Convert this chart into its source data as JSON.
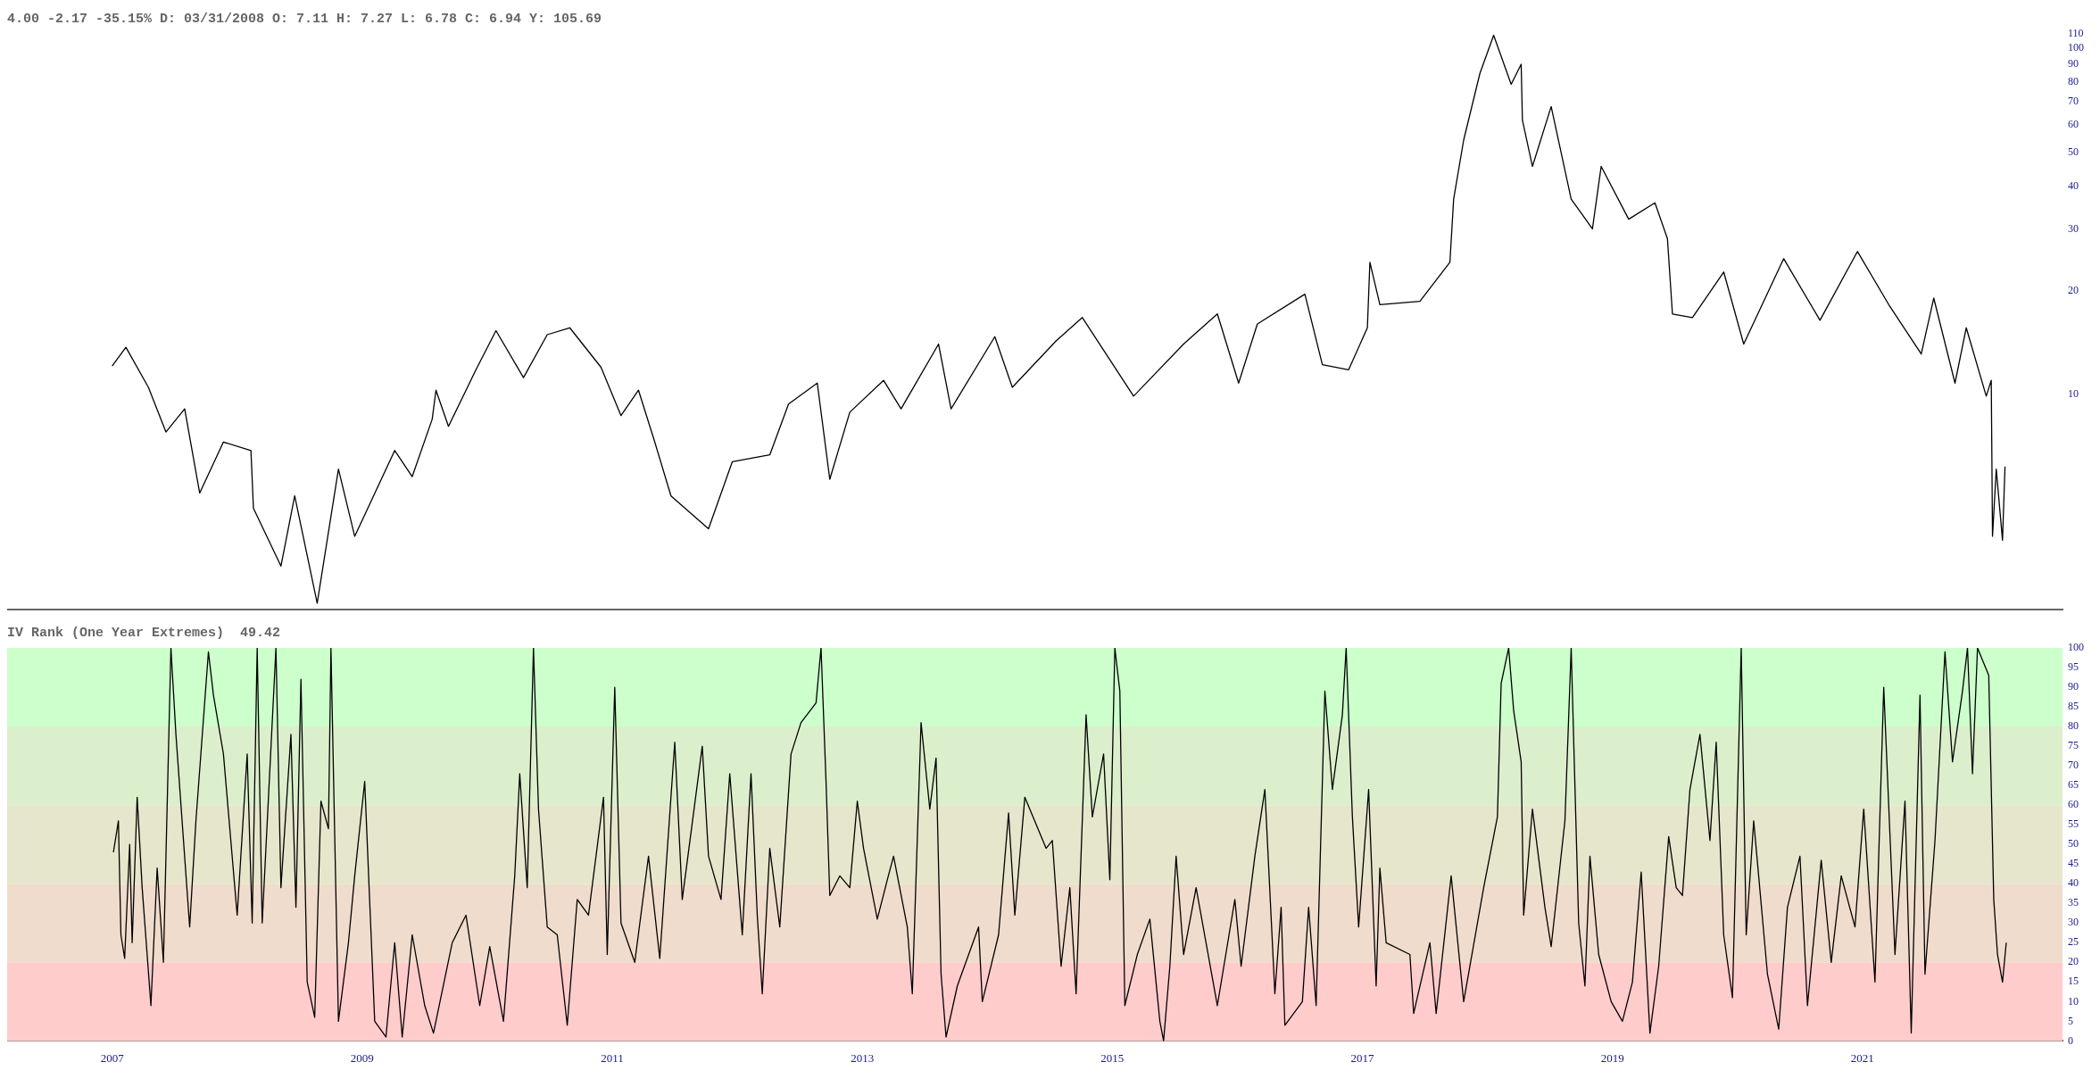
{
  "chart_data": [
    {
      "type": "line",
      "title": "4.00 -2.17 -35.15% D: 03/31/2008 O: 7.11 H: 7.27 L: 6.78 C: 6.94 Y: 105.69",
      "log": "y",
      "grid": false,
      "tick_labels": "y",
      "xlim": [
        2006.16,
        2022.6
      ],
      "ylim": [
        2.4,
        110
      ],
      "yticks": [
        10,
        20,
        30,
        40,
        50,
        60,
        70,
        80,
        90,
        100,
        110
      ],
      "series": [
        {
          "color": "#000000",
          "x": [
            2007.0,
            2007.11,
            2007.29,
            2007.43,
            2007.58,
            2007.7,
            2007.89,
            2008.11,
            2008.13,
            2008.35,
            2008.46,
            2008.64,
            2008.81,
            2008.94,
            2009.26,
            2009.4,
            2009.56,
            2009.59,
            2009.69,
            2009.91,
            2010.07,
            2010.29,
            2010.48,
            2010.66,
            2010.91,
            2011.07,
            2011.21,
            2011.34,
            2011.47,
            2011.77,
            2011.96,
            2012.26,
            2012.41,
            2012.64,
            2012.74,
            2012.9,
            2013.17,
            2013.31,
            2013.61,
            2013.71,
            2014.06,
            2014.2,
            2014.55,
            2014.76,
            2015.17,
            2015.57,
            2015.84,
            2016.01,
            2016.16,
            2016.54,
            2016.68,
            2016.89,
            2017.04,
            2017.06,
            2017.14,
            2017.46,
            2017.7,
            2017.73,
            2017.81,
            2017.94,
            2018.05,
            2018.19,
            2018.27,
            2018.28,
            2018.36,
            2018.51,
            2018.67,
            2018.84,
            2018.91,
            2019.13,
            2019.34,
            2019.44,
            2019.48,
            2019.64,
            2019.89,
            2020.05,
            2020.37,
            2020.66,
            2020.96,
            2021.21,
            2021.47,
            2021.57,
            2021.74,
            2021.83,
            2021.99,
            2022.03,
            2022.04,
            2022.07,
            2022.12,
            2022.14
          ],
          "values": [
            12.1,
            13.7,
            10.5,
            7.8,
            9.1,
            5.2,
            7.3,
            6.9,
            4.7,
            3.2,
            5.1,
            2.5,
            6.1,
            3.9,
            6.9,
            5.8,
            8.5,
            10.3,
            8.1,
            11.8,
            15.3,
            11.2,
            14.9,
            15.6,
            12.0,
            8.7,
            10.3,
            7.3,
            5.1,
            4.1,
            6.4,
            6.7,
            9.4,
            10.8,
            5.7,
            8.9,
            11.0,
            9.1,
            14.0,
            9.1,
            14.7,
            10.5,
            14.3,
            16.7,
            9.9,
            14.0,
            17.1,
            10.8,
            16.0,
            19.5,
            12.2,
            11.8,
            15.6,
            24.1,
            18.2,
            18.6,
            24.1,
            36.7,
            54.3,
            84.6,
            109,
            78.7,
            89.9,
            62,
            45.6,
            67.9,
            36.7,
            30.1,
            45.6,
            32.1,
            35.8,
            28.2,
            17.1,
            16.7,
            22.6,
            14.0,
            24.7,
            16.4,
            25.9,
            18.2,
            13.1,
            19.0,
            10.8,
            15.6,
            9.9,
            11.0,
            3.9,
            6.1,
            3.8,
            6.2
          ]
        }
      ]
    },
    {
      "type": "line",
      "title": "IV Rank (One Year Extremes)  49.42",
      "grid": false,
      "xlim": [
        2006.16,
        2022.6
      ],
      "xticks": [
        2007,
        2009,
        2011,
        2013,
        2015,
        2017,
        2019,
        2021
      ],
      "ylim": [
        0,
        100
      ],
      "yticks": [
        0,
        5,
        10,
        15,
        20,
        25,
        30,
        35,
        40,
        45,
        50,
        55,
        60,
        65,
        70,
        75,
        80,
        85,
        90,
        95,
        100
      ],
      "bands": [
        {
          "axis": "y",
          "from": 0,
          "to": 20,
          "color": "#ffcccc"
        },
        {
          "axis": "y",
          "from": 20,
          "to": 40,
          "color": "#f0dccc"
        },
        {
          "axis": "y",
          "from": 40,
          "to": 60,
          "color": "#e6e6cc"
        },
        {
          "axis": "y",
          "from": 60,
          "to": 80,
          "color": "#dcefcc"
        },
        {
          "axis": "y",
          "from": 80,
          "to": 100,
          "color": "#ccffcc"
        }
      ],
      "series": [
        {
          "color": "#000000",
          "x": [
            2007.01,
            2007.05,
            2007.07,
            2007.1,
            2007.14,
            2007.16,
            2007.2,
            2007.24,
            2007.31,
            2007.36,
            2007.41,
            2007.47,
            2007.51,
            2007.62,
            2007.67,
            2007.77,
            2007.81,
            2007.89,
            2008.0,
            2008.08,
            2008.12,
            2008.16,
            2008.2,
            2008.31,
            2008.35,
            2008.43,
            2008.47,
            2008.51,
            2008.56,
            2008.62,
            2008.67,
            2008.73,
            2008.75,
            2008.81,
            2008.89,
            2008.94,
            2009.02,
            2009.1,
            2009.19,
            2009.26,
            2009.32,
            2009.4,
            2009.5,
            2009.57,
            2009.72,
            2009.83,
            2009.94,
            2010.02,
            2010.13,
            2010.22,
            2010.26,
            2010.32,
            2010.37,
            2010.41,
            2010.48,
            2010.56,
            2010.64,
            2010.72,
            2010.81,
            2010.93,
            2010.96,
            2011.02,
            2011.07,
            2011.18,
            2011.29,
            2011.38,
            2011.5,
            2011.56,
            2011.72,
            2011.77,
            2011.87,
            2011.94,
            2012.04,
            2012.11,
            2012.16,
            2012.2,
            2012.26,
            2012.34,
            2012.43,
            2012.51,
            2012.63,
            2012.67,
            2012.71,
            2012.74,
            2012.82,
            2012.9,
            2012.96,
            2013.01,
            2013.12,
            2013.2,
            2013.25,
            2013.36,
            2013.4,
            2013.47,
            2013.54,
            2013.59,
            2013.63,
            2013.67,
            2013.76,
            2013.93,
            2013.96,
            2014.09,
            2014.17,
            2014.22,
            2014.3,
            2014.47,
            2014.52,
            2014.59,
            2014.66,
            2014.71,
            2014.79,
            2014.84,
            2014.93,
            2014.98,
            2015.02,
            2015.06,
            2015.1,
            2015.2,
            2015.3,
            2015.38,
            2015.41,
            2015.46,
            2015.51,
            2015.57,
            2015.67,
            2015.84,
            2015.98,
            2016.03,
            2016.14,
            2016.22,
            2016.3,
            2016.35,
            2016.38,
            2016.52,
            2016.57,
            2016.63,
            2016.7,
            2016.76,
            2016.84,
            2016.87,
            2016.92,
            2016.97,
            2017.05,
            2017.11,
            2017.14,
            2017.19,
            2017.38,
            2017.41,
            2017.54,
            2017.59,
            2017.71,
            2017.81,
            2017.97,
            2018.08,
            2018.11,
            2018.17,
            2018.21,
            2018.27,
            2018.29,
            2018.36,
            2018.46,
            2018.51,
            2018.62,
            2018.67,
            2018.73,
            2018.78,
            2018.82,
            2018.89,
            2018.99,
            2019.08,
            2019.16,
            2019.23,
            2019.3,
            2019.37,
            2019.45,
            2019.51,
            2019.56,
            2019.62,
            2019.7,
            2019.78,
            2019.83,
            2019.89,
            2019.96,
            2020.03,
            2020.07,
            2020.13,
            2020.24,
            2020.33,
            2020.4,
            2020.5,
            2020.56,
            2020.67,
            2020.75,
            2020.83,
            2020.94,
            2021.01,
            2021.1,
            2021.17,
            2021.26,
            2021.34,
            2021.39,
            2021.46,
            2021.5,
            2021.58,
            2021.66,
            2021.72,
            2021.8,
            2021.84,
            2021.88,
            2021.92,
            2022.01,
            2022.05,
            2022.08,
            2022.12,
            2022.15
          ],
          "values": [
            48,
            56,
            27,
            21,
            50,
            25,
            62,
            39,
            9,
            44,
            20,
            100,
            78,
            29,
            56,
            99,
            88,
            73,
            32,
            73,
            30,
            100,
            30,
            100,
            39,
            78,
            34,
            92,
            15,
            6,
            61,
            54,
            100,
            5,
            25,
            42,
            66,
            5,
            1,
            25,
            1,
            27,
            9,
            2,
            25,
            32,
            9,
            24,
            5,
            42,
            68,
            39,
            100,
            59,
            29,
            27,
            4,
            36,
            32,
            62,
            22,
            90,
            30,
            20,
            47,
            21,
            76,
            36,
            75,
            47,
            36,
            68,
            27,
            68,
            32,
            12,
            49,
            29,
            73,
            81,
            86,
            100,
            66,
            37,
            42,
            39,
            61,
            49,
            31,
            41,
            47,
            29,
            12,
            81,
            59,
            72,
            17,
            1,
            14,
            29,
            10,
            27,
            58,
            32,
            62,
            49,
            51,
            19,
            39,
            12,
            83,
            57,
            73,
            41,
            100,
            89,
            9,
            22,
            31,
            5,
            0,
            19,
            47,
            22,
            39,
            9,
            36,
            19,
            47,
            64,
            12,
            34,
            4,
            10,
            34,
            9,
            89,
            64,
            83,
            100,
            57,
            29,
            64,
            14,
            44,
            25,
            22,
            7,
            25,
            7,
            42,
            10,
            39,
            57,
            91,
            100,
            84,
            71,
            32,
            59,
            34,
            24,
            56,
            100,
            30,
            14,
            47,
            22,
            10,
            5,
            15,
            43,
            2,
            19,
            52,
            39,
            37,
            64,
            78,
            51,
            76,
            27,
            11,
            100,
            27,
            56,
            17,
            3,
            34,
            47,
            9,
            46,
            20,
            42,
            29,
            59,
            15,
            90,
            22,
            61,
            2,
            88,
            17,
            51,
            99,
            71,
            89,
            100,
            68,
            100,
            93,
            36,
            22,
            15,
            25
          ]
        }
      ]
    }
  ]
}
